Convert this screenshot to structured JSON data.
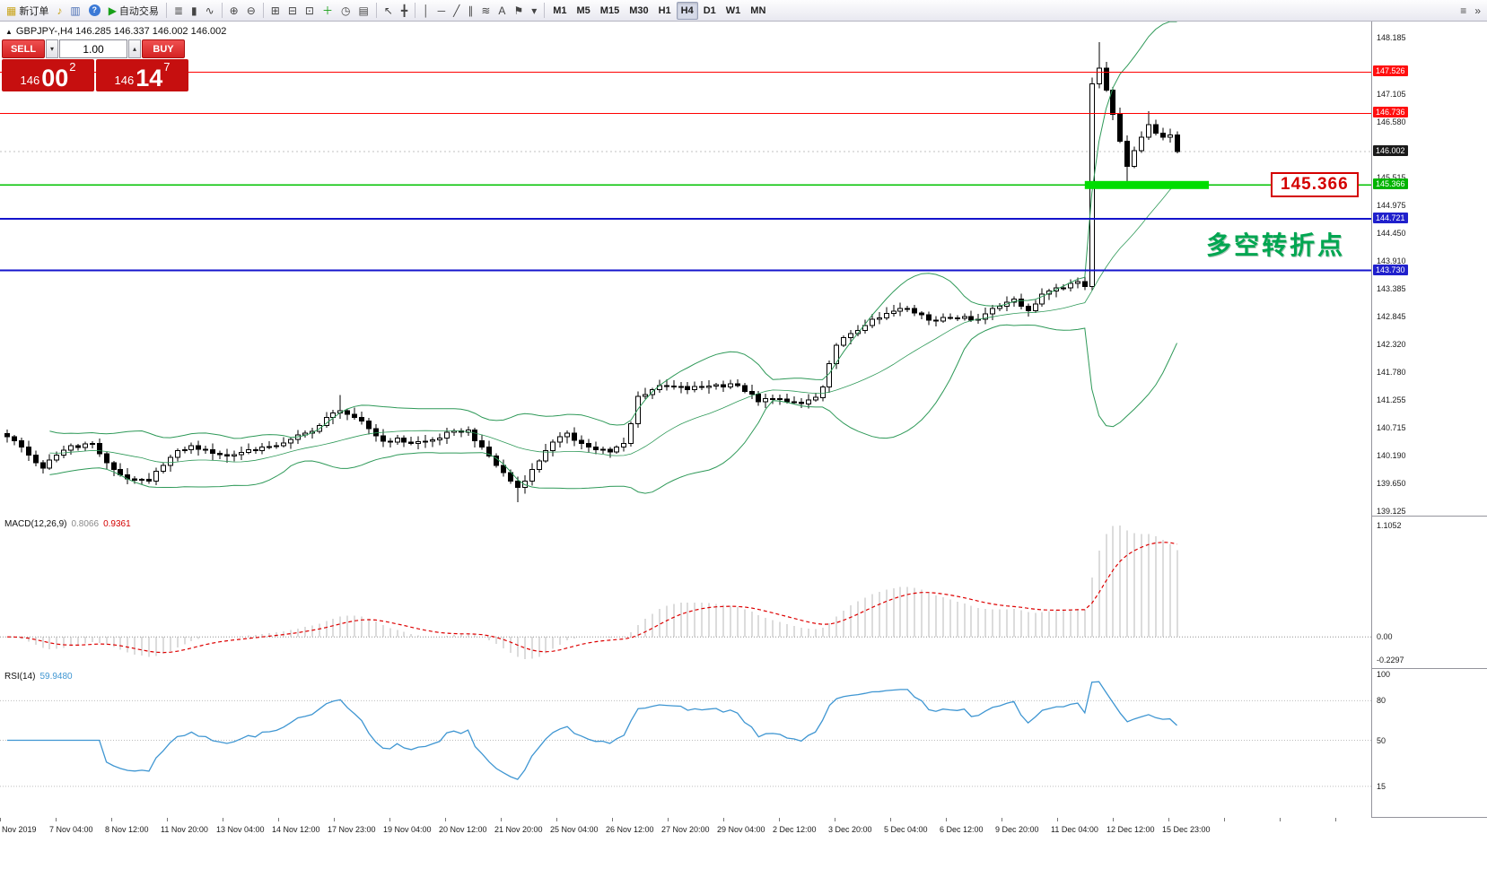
{
  "toolbar": {
    "items": [
      {
        "name": "new-order-button",
        "glyph": "▦",
        "glyph_color": "#c9a41c",
        "label": "新订单"
      },
      {
        "name": "alert-horn-icon",
        "glyph": "♪",
        "glyph_color": "#c9a41c"
      },
      {
        "name": "market-watch-icon",
        "glyph": "▥",
        "glyph_color": "#4a6fb5"
      },
      {
        "name": "help-icon",
        "glyph": "?",
        "badge": "#3b79d6"
      },
      {
        "name": "autotrading-button",
        "glyph": "▶",
        "glyph_color": "#18a018",
        "label": "自动交易"
      },
      {
        "sep": true
      },
      {
        "name": "bar-chart-icon",
        "glyph": "≣"
      },
      {
        "name": "candlestick-chart-icon",
        "glyph": "▮"
      },
      {
        "name": "line-chart-icon",
        "glyph": "∿"
      },
      {
        "sep": true
      },
      {
        "name": "zoom-in-icon",
        "glyph": "⊕"
      },
      {
        "name": "zoom-out-icon",
        "glyph": "⊖"
      },
      {
        "sep": true
      },
      {
        "name": "tile-windows-icon",
        "glyph": "⊞"
      },
      {
        "name": "cascade-windows-icon",
        "glyph": "⊟"
      },
      {
        "name": "arrange-windows-icon",
        "glyph": "⊡"
      },
      {
        "name": "add-indicator-button",
        "glyph": "＋",
        "glyph_color": "#18a018"
      },
      {
        "name": "period-clock-icon",
        "glyph": "◷"
      },
      {
        "name": "templates-icon",
        "glyph": "▤"
      },
      {
        "sep": true
      },
      {
        "name": "cursor-icon",
        "glyph": "↖"
      },
      {
        "name": "crosshair-icon",
        "glyph": "╋"
      },
      {
        "sep": true
      },
      {
        "name": "vertical-line-icon",
        "glyph": "│"
      },
      {
        "name": "horizontal-line-icon",
        "glyph": "─"
      },
      {
        "name": "trendline-icon",
        "glyph": "╱"
      },
      {
        "name": "channel-icon",
        "glyph": "∥"
      },
      {
        "name": "fibonacci-icon",
        "glyph": "≋"
      },
      {
        "name": "text-icon",
        "glyph": "A"
      },
      {
        "name": "label-flag-icon",
        "glyph": "⚑"
      },
      {
        "name": "objects-dropdown-icon",
        "glyph": "▾"
      },
      {
        "sep": true
      },
      {
        "tf": true,
        "name": "tf-m1",
        "label": "M1"
      },
      {
        "tf": true,
        "name": "tf-m5",
        "label": "M5"
      },
      {
        "tf": true,
        "name": "tf-m15",
        "label": "M15"
      },
      {
        "tf": true,
        "name": "tf-m30",
        "label": "M30"
      },
      {
        "tf": true,
        "name": "tf-h1",
        "label": "H1"
      },
      {
        "tf": true,
        "name": "tf-h4",
        "label": "H4",
        "active": true
      },
      {
        "tf": true,
        "name": "tf-d1",
        "label": "D1"
      },
      {
        "tf": true,
        "name": "tf-w1",
        "label": "W1"
      },
      {
        "tf": true,
        "name": "tf-mn",
        "label": "MN"
      },
      {
        "name": "print-icon",
        "glyph": "≡",
        "push_right": true
      },
      {
        "name": "toolbar-overflow-icon",
        "glyph": "»"
      }
    ]
  },
  "chart": {
    "header_arrow": "▲",
    "header": "GBPJPY-,H4  146.285 146.337 146.002 146.002"
  },
  "order_panel": {
    "sell_label": "SELL",
    "buy_label": "BUY",
    "volume": "1.00",
    "spin_down": "▾",
    "spin_up": "▴",
    "sell_price_prefix": "146",
    "sell_price_big": "00",
    "sell_price_sup": "2",
    "buy_price_prefix": "146",
    "buy_price_big": "14",
    "buy_price_sup": "7"
  },
  "annotations": {
    "turning_point_text": "多空转折点",
    "price_tag": "145.366"
  },
  "macd": {
    "title": "MACD(12,26,9)",
    "value": "0.8066",
    "signal": "0.9361",
    "scale": [
      "1.1052",
      "0.00",
      "-0.2297"
    ]
  },
  "rsi": {
    "title": "RSI(14)",
    "value": "59.9480",
    "scale": [
      "100",
      "80",
      "50",
      "15"
    ],
    "levels": [
      80,
      50,
      15
    ]
  },
  "time_axis": [
    "Nov 2019",
    "7 Nov 04:00",
    "8 Nov 12:00",
    "11 Nov 20:00",
    "13 Nov 04:00",
    "14 Nov 12:00",
    "17 Nov 23:00",
    "19 Nov 04:00",
    "20 Nov 12:00",
    "21 Nov 20:00",
    "25 Nov 04:00",
    "26 Nov 12:00",
    "27 Nov 20:00",
    "29 Nov 04:00",
    "2 Dec 12:00",
    "3 Dec 20:00",
    "5 Dec 04:00",
    "6 Dec 12:00",
    "9 Dec 20:00",
    "11 Dec 04:00",
    "12 Dec 12:00",
    "15 Dec 23:00"
  ],
  "chart_data": {
    "type": "candlestick",
    "symbol": "GBPJPY-",
    "timeframe": "H4",
    "ohlc_current": {
      "open": 146.285,
      "high": 146.337,
      "low": 146.002,
      "close": 146.002
    },
    "current_price": 146.002,
    "price_range": [
      139.125,
      148.185
    ],
    "candle_count": 166,
    "close_waypoints": [
      [
        0,
        140.55
      ],
      [
        2,
        140.35
      ],
      [
        4,
        140.05
      ],
      [
        5,
        139.95
      ],
      [
        7,
        140.2
      ],
      [
        9,
        140.38
      ],
      [
        12,
        140.42
      ],
      [
        14,
        140.05
      ],
      [
        16,
        139.82
      ],
      [
        18,
        139.72
      ],
      [
        20,
        139.7
      ],
      [
        22,
        140.0
      ],
      [
        24,
        140.28
      ],
      [
        26,
        140.38
      ],
      [
        28,
        140.3
      ],
      [
        31,
        140.18
      ],
      [
        34,
        140.3
      ],
      [
        37,
        140.36
      ],
      [
        40,
        140.5
      ],
      [
        43,
        140.65
      ],
      [
        46,
        141.0
      ],
      [
        47,
        141.05
      ],
      [
        49,
        140.92
      ],
      [
        51,
        140.7
      ],
      [
        53,
        140.46
      ],
      [
        55,
        140.52
      ],
      [
        57,
        140.42
      ],
      [
        59,
        140.46
      ],
      [
        61,
        140.52
      ],
      [
        63,
        140.66
      ],
      [
        65,
        140.68
      ],
      [
        67,
        140.35
      ],
      [
        69,
        140.0
      ],
      [
        71,
        139.7
      ],
      [
        72,
        139.58
      ],
      [
        74,
        139.92
      ],
      [
        76,
        140.28
      ],
      [
        78,
        140.55
      ],
      [
        79,
        140.62
      ],
      [
        81,
        140.42
      ],
      [
        83,
        140.3
      ],
      [
        85,
        140.26
      ],
      [
        87,
        140.42
      ],
      [
        88,
        140.8
      ],
      [
        89,
        141.32
      ],
      [
        91,
        141.45
      ],
      [
        93,
        141.52
      ],
      [
        96,
        141.45
      ],
      [
        99,
        141.52
      ],
      [
        102,
        141.56
      ],
      [
        104,
        141.42
      ],
      [
        106,
        141.22
      ],
      [
        108,
        141.28
      ],
      [
        110,
        141.22
      ],
      [
        112,
        141.18
      ],
      [
        114,
        141.3
      ],
      [
        115,
        141.5
      ],
      [
        116,
        141.95
      ],
      [
        117,
        142.3
      ],
      [
        119,
        142.52
      ],
      [
        121,
        142.68
      ],
      [
        123,
        142.82
      ],
      [
        125,
        142.95
      ],
      [
        127,
        143.0
      ],
      [
        129,
        142.88
      ],
      [
        131,
        142.76
      ],
      [
        133,
        142.82
      ],
      [
        135,
        142.85
      ],
      [
        137,
        142.8
      ],
      [
        139,
        143.0
      ],
      [
        141,
        143.12
      ],
      [
        142,
        143.18
      ],
      [
        143,
        143.05
      ],
      [
        144,
        142.96
      ],
      [
        146,
        143.28
      ],
      [
        148,
        143.4
      ],
      [
        150,
        143.48
      ],
      [
        151,
        143.52
      ],
      [
        152,
        143.42
      ],
      [
        153,
        147.3
      ],
      [
        154,
        147.6
      ],
      [
        155,
        147.18
      ],
      [
        156,
        146.72
      ],
      [
        157,
        146.2
      ],
      [
        158,
        145.72
      ],
      [
        159,
        146.02
      ],
      [
        160,
        146.28
      ],
      [
        161,
        146.52
      ],
      [
        162,
        146.36
      ],
      [
        163,
        146.28
      ],
      [
        164,
        146.32
      ],
      [
        165,
        146.002
      ]
    ],
    "wick_overrides": [
      {
        "i": 47,
        "high": 141.35
      },
      {
        "i": 72,
        "low": 139.3
      },
      {
        "i": 153,
        "low": 143.35
      },
      {
        "i": 154,
        "high": 148.1
      },
      {
        "i": 158,
        "low": 145.42
      },
      {
        "i": 161,
        "high": 146.78
      }
    ],
    "bollinger": {
      "period": 20,
      "deviation": 2,
      "color": "#2e9958"
    },
    "levels": [
      {
        "price": 147.526,
        "color": "#ff0000",
        "width": 1.3
      },
      {
        "price": 146.736,
        "color": "#ff0000",
        "width": 1.3
      },
      {
        "price": 145.366,
        "color": "#00c200",
        "width": 1.6
      },
      {
        "price": 144.721,
        "color": "#1414cc",
        "width": 1.8
      },
      {
        "price": 143.73,
        "color": "#1414cc",
        "width": 1.8
      }
    ],
    "support_zone": {
      "price": 145.366,
      "from_i": 152,
      "to_i": 169.5,
      "color": "#00dd00",
      "thickness": 9
    },
    "scale_ticks": [
      "148.185",
      "147.105",
      "146.580",
      "145.515",
      "144.975",
      "144.450",
      "143.910",
      "143.385",
      "142.845",
      "142.320",
      "141.780",
      "141.255",
      "140.715",
      "140.190",
      "139.650",
      "139.125"
    ],
    "boxed_ticks": [
      {
        "label": "147.526",
        "price": 147.526,
        "bg": "#ff1010"
      },
      {
        "label": "146.736",
        "price": 146.736,
        "bg": "#ff1010"
      },
      {
        "label": "146.002",
        "price": 146.002,
        "bg": "#1a1a1a"
      },
      {
        "label": "145.366",
        "price": 145.366,
        "bg": "#00b400"
      },
      {
        "label": "144.721",
        "price": 144.721,
        "bg": "#2020cc"
      },
      {
        "label": "143.730",
        "price": 143.73,
        "bg": "#2020cc"
      }
    ]
  }
}
